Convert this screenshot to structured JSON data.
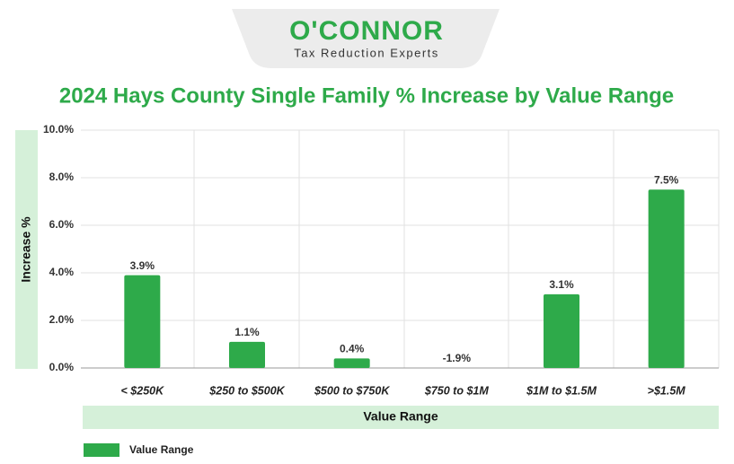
{
  "logo": {
    "name": "O'CONNOR",
    "tagline": "Tax Reduction Experts"
  },
  "chart_data": {
    "type": "bar",
    "title": "2024 Hays County Single Family % Increase by Value Range",
    "y_label": "Increase %",
    "x_label": "Value Range",
    "categories": [
      "< $250K",
      "$250 to $500K",
      "$500 to $750K",
      "$750 to $1M",
      "$1M to $1.5M",
      ">$1.5M"
    ],
    "series": [
      {
        "name": "Value Range",
        "color": "#2eaa4a",
        "values": [
          3.9,
          1.1,
          0.4,
          -1.9,
          3.1,
          7.5
        ],
        "value_labels": [
          "3.9%",
          "1.1%",
          "0.4%",
          "-1.9%",
          "3.1%",
          "7.5%"
        ]
      }
    ],
    "ylim": [
      0,
      10
    ],
    "yticks": [
      {
        "value": 0,
        "label": "0.0%"
      },
      {
        "value": 2,
        "label": "2.0%"
      },
      {
        "value": 4,
        "label": "4.0%"
      },
      {
        "value": 6,
        "label": "6.0%"
      },
      {
        "value": 8,
        "label": "8.0%"
      },
      {
        "value": 10,
        "label": "10.0%"
      }
    ],
    "grid": true,
    "legend": "bottom-left"
  }
}
